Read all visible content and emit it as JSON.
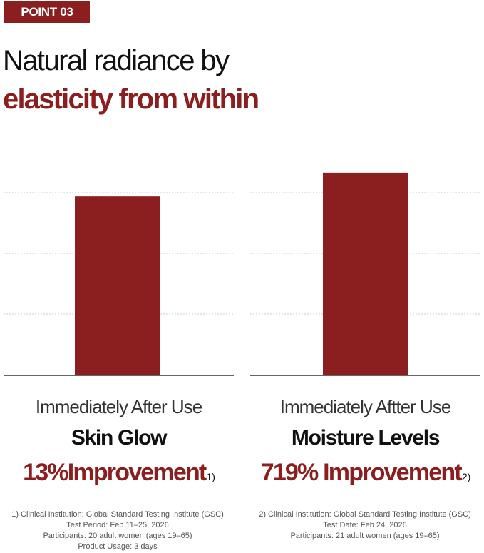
{
  "badge": {
    "label": "POINT 03"
  },
  "headline": {
    "line1": "Natural radiance by",
    "line2": "elasticity from within"
  },
  "colors": {
    "accent": "#8b1e1e",
    "gridline": "#cccccc",
    "baseline": "#333333"
  },
  "chart_data": [
    {
      "type": "bar",
      "categories": [
        "Immediately After Use"
      ],
      "values": [
        13
      ],
      "ylim": [
        0,
        17
      ],
      "grid": true,
      "title": "Skin Glow",
      "subtitle": "Immediately After Use",
      "result": "13%Improvement",
      "footnote_mark": "1)"
    },
    {
      "type": "bar",
      "categories": [
        "Immediately Aftter Use"
      ],
      "values": [
        719
      ],
      "ylim": [
        0,
        830
      ],
      "grid": true,
      "title": "Moisture Levels",
      "subtitle": "Immediately Aftter Use",
      "result": "719% Improvement",
      "footnote_mark": "2)"
    }
  ],
  "footnotes": {
    "left": [
      "1)   Clinical Institution: Global Standard Testing Institute (GSC)",
      "Test Period: Feb 11–25, 2026",
      "Participants: 20 adult women (ages 19–65)",
      "Product Usage: 3 days"
    ],
    "right": [
      "2) Clinical Institution: Global Standard Testing Institute (GSC)",
      "Test Date: Feb 24, 2026",
      "Participants: 21 adult women (ages 19–65)"
    ]
  }
}
